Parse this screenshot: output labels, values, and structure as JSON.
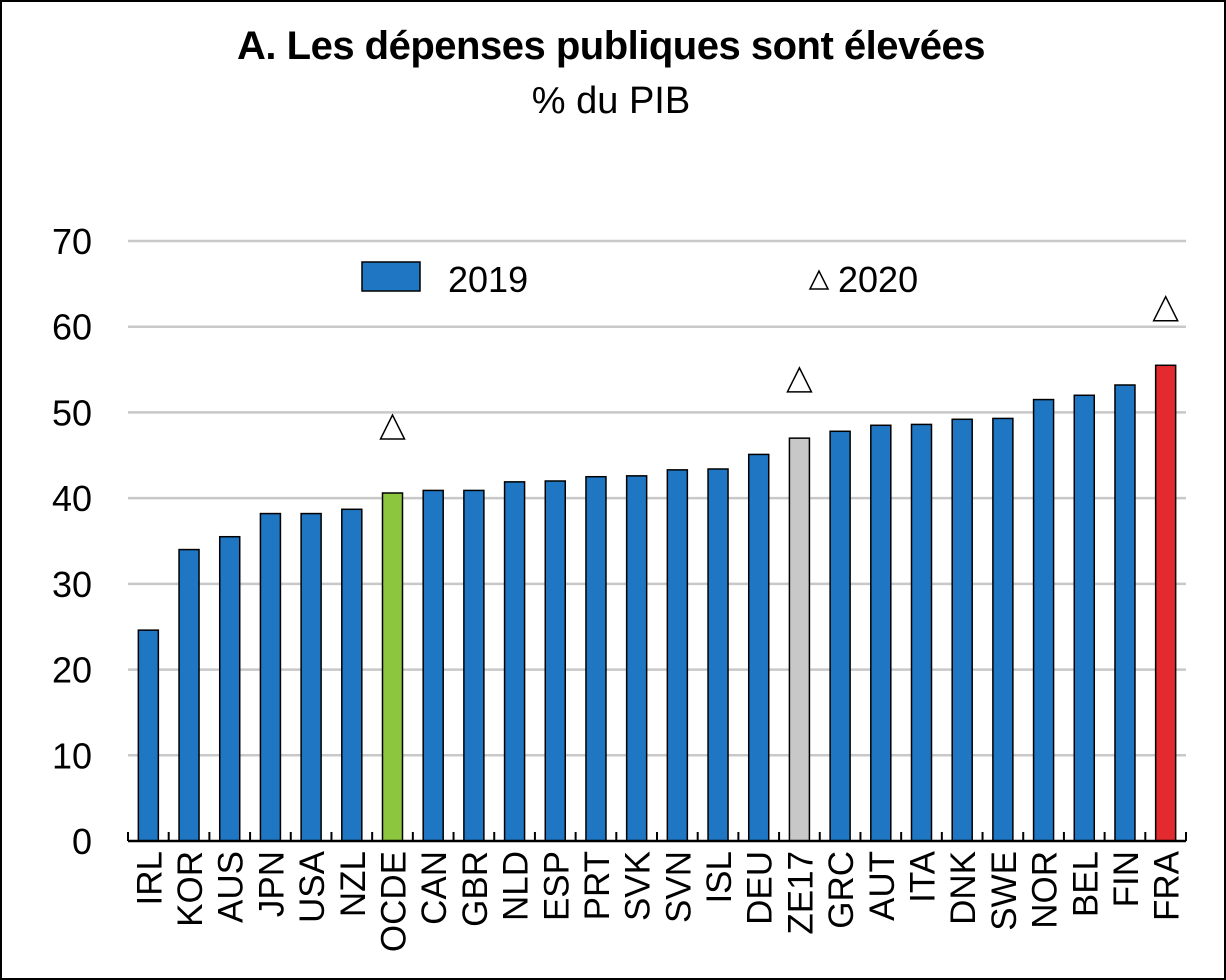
{
  "chart_data": {
    "type": "bar",
    "title": "A. Les dépenses publiques sont élevées",
    "subtitle": "% du PIB",
    "xlabel": "",
    "ylabel": "",
    "ylim": [
      0,
      70
    ],
    "yticks": [
      0,
      10,
      20,
      30,
      40,
      50,
      60,
      70
    ],
    "grid": true,
    "legend_position": "top",
    "categories": [
      "IRL",
      "KOR",
      "AUS",
      "JPN",
      "USA",
      "NZL",
      "OCDE",
      "CAN",
      "GBR",
      "NLD",
      "ESP",
      "PRT",
      "SVK",
      "SVN",
      "ISL",
      "DEU",
      "ZE17",
      "GRC",
      "AUT",
      "ITA",
      "DNK",
      "SWE",
      "NOR",
      "BEL",
      "FIN",
      "FRA"
    ],
    "series": [
      {
        "name": "2019",
        "marker": "bar",
        "values": [
          24.6,
          34.0,
          35.5,
          38.2,
          38.2,
          38.7,
          40.6,
          40.9,
          40.9,
          41.9,
          42.0,
          42.5,
          42.6,
          43.3,
          43.4,
          45.1,
          47.0,
          47.8,
          48.5,
          48.6,
          49.2,
          49.3,
          51.5,
          52.0,
          53.2,
          55.5
        ]
      },
      {
        "name": "2020",
        "marker": "triangle",
        "values": [
          null,
          null,
          null,
          null,
          null,
          null,
          48.3,
          null,
          null,
          null,
          null,
          null,
          null,
          null,
          null,
          null,
          53.8,
          null,
          null,
          null,
          null,
          null,
          null,
          null,
          null,
          62.1
        ]
      }
    ],
    "colors": {
      "default_bar": "#1f77c4",
      "highlight": {
        "OCDE": "#8cc63f",
        "ZE17": "#c8c8c8",
        "FRA": "#e32a2e"
      },
      "grid": "#c8c8c8",
      "axis": "#000000",
      "bar_outline": "#000000"
    }
  }
}
